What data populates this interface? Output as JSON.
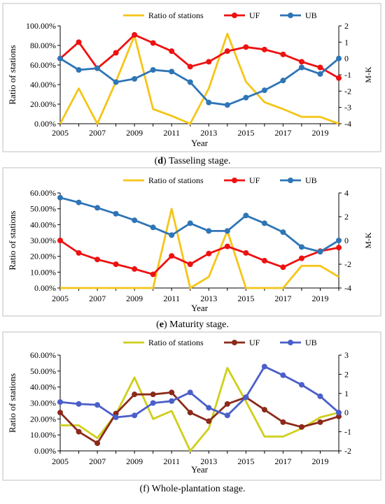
{
  "legend_labels": {
    "ratio": "Ratio of stations",
    "uf": "UF",
    "ub": "UB"
  },
  "chart_data": [
    {
      "type": "line",
      "caption_letter": "(d)",
      "caption_text": " Tasseling stage.",
      "xlabel": "Year",
      "ylabel": "Ratio of stations",
      "y2label": "M-K",
      "x": [
        2005,
        2006,
        2007,
        2008,
        2009,
        2010,
        2011,
        2012,
        2013,
        2014,
        2015,
        2016,
        2017,
        2018,
        2019,
        2020
      ],
      "xticks": [
        "2005",
        "2007",
        "2009",
        "2011",
        "2013",
        "2015",
        "2017",
        "2019"
      ],
      "ylim": [
        0,
        100
      ],
      "yticks": [
        "0.00%",
        "20.00%",
        "40.00%",
        "60.00%",
        "80.00%",
        "100.00%"
      ],
      "y2lim": [
        -4,
        2
      ],
      "y2ticks": [
        "-4",
        "-3",
        "-2",
        "-1",
        "0",
        "1",
        "2"
      ],
      "colors": {
        "ratio": "#f5c518",
        "uf": "#ee1111",
        "ub": "#2e75b6"
      },
      "series": [
        {
          "key": "ratio",
          "axis": "left",
          "markers": false,
          "values": [
            0,
            36,
            0,
            43,
            90,
            15,
            8,
            0,
            36,
            92,
            43,
            22,
            15,
            7,
            7,
            0
          ]
        },
        {
          "key": "uf",
          "axis": "right",
          "markers": true,
          "values": [
            0,
            1,
            -0.6,
            0.35,
            1.45,
            0.95,
            0.45,
            -0.5,
            -0.2,
            0.45,
            0.7,
            0.55,
            0.25,
            -0.2,
            -0.55,
            -1.2
          ]
        },
        {
          "key": "ub",
          "axis": "right",
          "markers": true,
          "values": [
            0,
            -0.7,
            -0.6,
            -1.45,
            -1.25,
            -0.7,
            -0.8,
            -1.45,
            -2.7,
            -2.85,
            -2.4,
            -1.95,
            -1.35,
            -0.55,
            -0.95,
            0
          ]
        }
      ]
    },
    {
      "type": "line",
      "caption_letter": "(e)",
      "caption_text": " Maturity stage.",
      "xlabel": "Year",
      "ylabel": "Ratio of stations",
      "y2label": "M-K",
      "x": [
        2005,
        2006,
        2007,
        2008,
        2009,
        2010,
        2011,
        2012,
        2013,
        2014,
        2015,
        2016,
        2017,
        2018,
        2019,
        2020
      ],
      "xticks": [
        "2005",
        "2007",
        "2009",
        "2011",
        "2013",
        "2015",
        "2017",
        "2019"
      ],
      "ylim": [
        0,
        60
      ],
      "yticks": [
        "0.00%",
        "10.00%",
        "20.00%",
        "30.00%",
        "40.00%",
        "50.00%",
        "60.00%"
      ],
      "y2lim": [
        -4,
        4
      ],
      "y2ticks": [
        "-4",
        "-2",
        "0",
        "2",
        "4"
      ],
      "colors": {
        "ratio": "#f5c518",
        "uf": "#ee1111",
        "ub": "#2e75b6"
      },
      "series": [
        {
          "key": "ratio",
          "axis": "left",
          "markers": false,
          "values": [
            0,
            0,
            0,
            0,
            0,
            0,
            50,
            0,
            7,
            36,
            0,
            0,
            0,
            14,
            14,
            7
          ]
        },
        {
          "key": "uf",
          "axis": "right",
          "markers": true,
          "values": [
            0,
            -1.05,
            -1.6,
            -2,
            -2.4,
            -2.85,
            -1.3,
            -2,
            -1.1,
            -0.5,
            -1.05,
            -1.7,
            -2.25,
            -1.5,
            -0.9,
            -0.6
          ]
        },
        {
          "key": "ub",
          "axis": "right",
          "markers": true,
          "values": [
            3.6,
            3.2,
            2.75,
            2.25,
            1.7,
            1.1,
            0.45,
            1.45,
            0.8,
            0.8,
            2.1,
            1.45,
            0.7,
            -0.55,
            -0.95,
            0
          ]
        }
      ]
    },
    {
      "type": "line",
      "caption_letter": "",
      "caption_text": "(f) Whole-plantation stage.",
      "xlabel": "Year",
      "ylabel": "Ratio of stations",
      "y2label": "",
      "x": [
        2005,
        2006,
        2007,
        2008,
        2009,
        2010,
        2011,
        2012,
        2013,
        2014,
        2015,
        2016,
        2017,
        2018,
        2019,
        2020
      ],
      "xticks": [
        "2005",
        "2007",
        "2009",
        "2011",
        "2013",
        "2015",
        "2017",
        "2019"
      ],
      "ylim": [
        0,
        60
      ],
      "yticks": [
        "0.00%",
        "10.00%",
        "20.00%",
        "30.00%",
        "40.00%",
        "50.00%",
        "60.00%"
      ],
      "y2lim": [
        -2,
        3
      ],
      "y2ticks": [
        "-2",
        "-1",
        "0",
        "1",
        "2",
        "3"
      ],
      "colors": {
        "ratio": "#cfcf1a",
        "uf": "#8b2a1a",
        "ub": "#4a5fc9"
      },
      "series": [
        {
          "key": "ratio",
          "axis": "left",
          "markers": false,
          "values": [
            16,
            16,
            8,
            23,
            46,
            20,
            25,
            0,
            14,
            52,
            31,
            9,
            9,
            14,
            21,
            24
          ]
        },
        {
          "key": "uf",
          "axis": "right",
          "markers": true,
          "values": [
            0,
            -1,
            -1.6,
            -0.05,
            0.95,
            0.95,
            1.05,
            0,
            -0.45,
            0.45,
            0.8,
            0.15,
            -0.5,
            -0.75,
            -0.5,
            -0.2
          ]
        },
        {
          "key": "ub",
          "axis": "right",
          "markers": true,
          "values": [
            0.55,
            0.45,
            0.4,
            -0.25,
            -0.15,
            0.5,
            0.6,
            1.05,
            0.25,
            -0.15,
            0.8,
            2.4,
            1.95,
            1.45,
            0.85,
            0
          ]
        }
      ]
    }
  ]
}
